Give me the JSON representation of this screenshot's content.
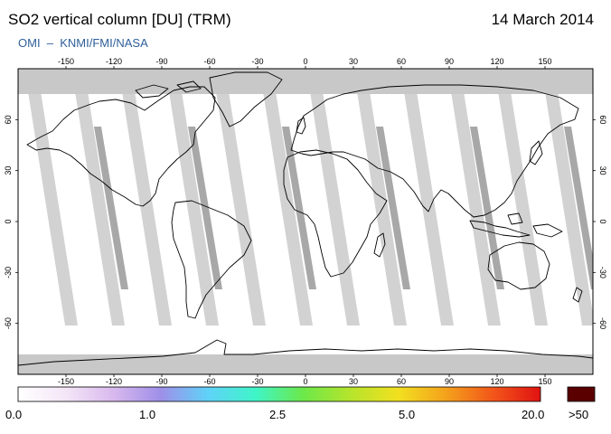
{
  "header": {
    "title": "SO2 vertical column [DU] (TRM)",
    "date": "14 March 2014",
    "credit": "OMI  –  KNMI/FMI/NASA"
  },
  "map": {
    "projection": "equirectangular",
    "lon_range": [
      -180,
      180
    ],
    "lat_range": [
      -90,
      90
    ],
    "lon_ticks": [
      -150,
      -120,
      -90,
      -60,
      -30,
      0,
      30,
      60,
      90,
      120,
      150
    ],
    "lat_ticks": [
      60,
      30,
      0,
      -30,
      -60
    ],
    "colors": {
      "frame": "#000000",
      "polar_no_data": "#c8c8c8",
      "orbit_swath": "#d2d2d2",
      "orbit_swath_dark": "#a8a8a8",
      "coastline": "#000000",
      "background": "#ffffff"
    }
  },
  "legend": {
    "labels": [
      "0.0",
      "1.0",
      "2.5",
      "5.0",
      "20.0"
    ],
    "overflow_label": ">50",
    "overflow_color": "#5a0000",
    "gradient_stops": [
      "#ffffff",
      "#f4e6f7",
      "#d9b9ee",
      "#9f8fe8",
      "#5fd2f8",
      "#3ff5c8",
      "#6ce84a",
      "#b6e42c",
      "#f2e020",
      "#f4a21c",
      "#f2561a",
      "#e01212"
    ]
  }
}
